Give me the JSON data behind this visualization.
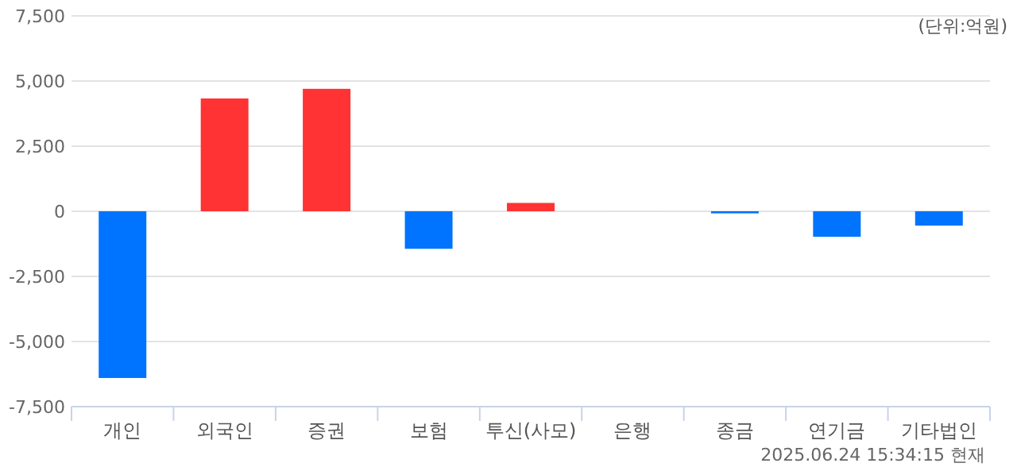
{
  "chart_data": {
    "type": "bar",
    "categories": [
      "개인",
      "외국인",
      "증권",
      "보험",
      "투신(사모)",
      "은행",
      "종금",
      "연기금",
      "기타법인"
    ],
    "values": [
      -6400,
      4330,
      4700,
      -1440,
      320,
      0,
      -80,
      -980,
      -550
    ],
    "colors": [
      "#0073ff",
      "#ff3333",
      "#ff3333",
      "#0073ff",
      "#ff3333",
      "#ff3333",
      "#0073ff",
      "#0073ff",
      "#0073ff"
    ],
    "ylim": [
      -7500,
      7500
    ],
    "yticks": [
      {
        "value": -7500,
        "label": "-7,500"
      },
      {
        "value": -5000,
        "label": "-5,000"
      },
      {
        "value": -2500,
        "label": "-2,500"
      },
      0,
      {
        "value": 2500,
        "label": "2,500"
      },
      {
        "value": 5000,
        "label": "5,000"
      },
      {
        "value": 7500,
        "label": "7,500"
      }
    ],
    "grid": "y",
    "annotations": [
      "(단위:억원)",
      "2025.06.24 15:34:15 현재"
    ]
  }
}
